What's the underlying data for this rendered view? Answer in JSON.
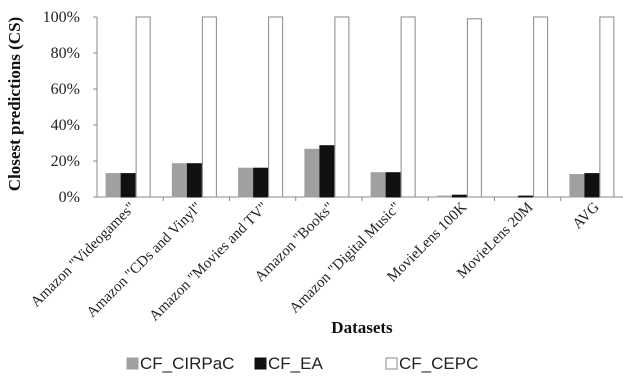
{
  "chart_data": {
    "type": "bar",
    "title": "",
    "xlabel": "Datasets",
    "ylabel": "Closest  predictions (CS)",
    "ylim": [
      0,
      100
    ],
    "yticks": [
      0,
      20,
      40,
      60,
      80,
      100
    ],
    "ytick_format": "%",
    "grid": false,
    "legend_position": "bottom",
    "categories": [
      "Amazon \"Videogames\"",
      "Amazon \"CDs and Vinyl\"",
      "Amazon \"Movies and TV\"",
      "Amazon \"Books\"",
      "Amazon \"Digital Music\"",
      "MovieLens 100K",
      "MovieLens 20M",
      "AVG"
    ],
    "series": [
      {
        "name": "CF_CIRPaC",
        "color": "#a0a0a0",
        "stroke": "#a0a0a0",
        "values": [
          13,
          18.5,
          16,
          26.5,
          13.5,
          0.5,
          0,
          12.5
        ]
      },
      {
        "name": "CF_EA",
        "color": "#111111",
        "stroke": "#111111",
        "values": [
          13,
          18.5,
          16,
          28.5,
          13.5,
          1,
          0.5,
          13
        ]
      },
      {
        "name": "CF_CEPC",
        "color": "#ffffff",
        "stroke": "#888888",
        "values": [
          100,
          100,
          100,
          100,
          100,
          99,
          100,
          100
        ]
      }
    ]
  }
}
